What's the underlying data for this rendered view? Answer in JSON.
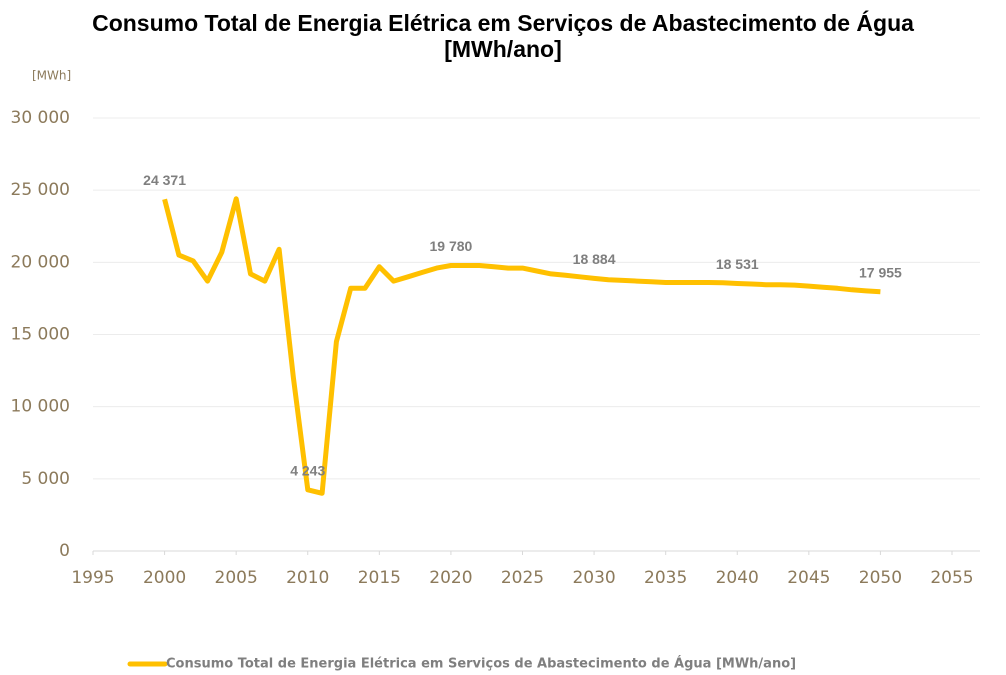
{
  "chart_data": {
    "type": "line",
    "title": "Consumo Total de Energia Elétrica em Serviços de Abastecimento de Água [MWh/ano]",
    "y_unit": "[MWh]",
    "x": [
      2000,
      2001,
      2002,
      2003,
      2004,
      2005,
      2006,
      2007,
      2008,
      2009,
      2010,
      2011,
      2012,
      2013,
      2014,
      2015,
      2016,
      2017,
      2018,
      2019,
      2020,
      2021,
      2022,
      2023,
      2024,
      2025,
      2026,
      2027,
      2028,
      2029,
      2030,
      2031,
      2032,
      2033,
      2034,
      2035,
      2036,
      2037,
      2038,
      2039,
      2040,
      2041,
      2042,
      2043,
      2044,
      2045,
      2046,
      2047,
      2048,
      2049,
      2050
    ],
    "series": [
      {
        "name": "Consumo Total de Energia Elétrica em Serviços de Abastecimento de Água [MWh/ano]",
        "color": "#FFC000",
        "values": [
          24371,
          20500,
          20100,
          18700,
          20700,
          24400,
          19200,
          18700,
          20900,
          12000,
          4243,
          4000,
          14500,
          18200,
          18200,
          19700,
          18700,
          19000,
          19300,
          19600,
          19780,
          19780,
          19780,
          19700,
          19600,
          19600,
          19400,
          19200,
          19100,
          19000,
          18884,
          18800,
          18750,
          18700,
          18650,
          18600,
          18600,
          18600,
          18600,
          18580,
          18531,
          18500,
          18450,
          18450,
          18420,
          18350,
          18280,
          18200,
          18100,
          18020,
          17955
        ],
        "value_labels": [
          "24 371",
          null,
          null,
          null,
          null,
          null,
          null,
          null,
          null,
          null,
          "4 243",
          null,
          null,
          null,
          null,
          null,
          null,
          null,
          null,
          null,
          "19 780",
          null,
          null,
          null,
          null,
          null,
          null,
          null,
          null,
          null,
          "18 884",
          null,
          null,
          null,
          null,
          null,
          null,
          null,
          null,
          null,
          "18 531",
          null,
          null,
          null,
          null,
          null,
          null,
          null,
          null,
          null,
          "17 955"
        ]
      }
    ],
    "xlim": [
      1995,
      2055
    ],
    "xticks": [
      1995,
      2000,
      2005,
      2010,
      2015,
      2020,
      2025,
      2030,
      2035,
      2040,
      2045,
      2050,
      2055
    ],
    "ylim": [
      0,
      30000
    ],
    "yticks": [
      0,
      {
        "value": 5000,
        "label": "5 000"
      },
      {
        "value": 10000,
        "label": "10 000"
      },
      {
        "value": 15000,
        "label": "15 000"
      },
      {
        "value": 20000,
        "label": "20 000"
      },
      {
        "value": 25000,
        "label": "25 000"
      },
      {
        "value": 30000,
        "label": "30 000"
      }
    ],
    "grid": true,
    "legend": "bottom"
  }
}
